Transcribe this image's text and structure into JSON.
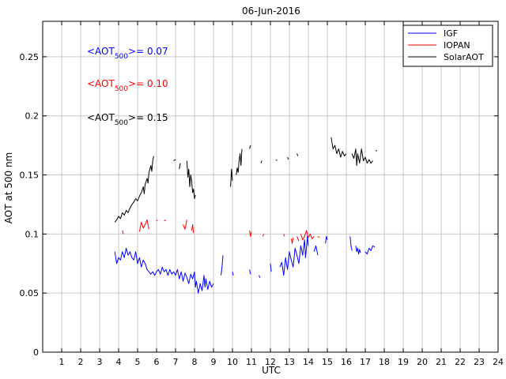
{
  "chart_data": {
    "type": "line",
    "title": "06-Jun-2016",
    "xlabel": "UTC",
    "ylabel": "AOT at 500 nm",
    "xlim": [
      0,
      24
    ],
    "ylim": [
      0,
      0.28
    ],
    "grid": true,
    "xticks": [
      "1",
      "2",
      "3",
      "4",
      "5",
      "6",
      "7",
      "8",
      "9",
      "10",
      "11",
      "12",
      "13",
      "14",
      "15",
      "16",
      "17",
      "18",
      "19",
      "20",
      "21",
      "22",
      "23",
      "24"
    ],
    "yticks": [
      "0",
      "0.05",
      "0.1",
      "0.15",
      "0.2",
      "0.25"
    ],
    "legend": {
      "position": "top-right",
      "entries": [
        {
          "name": "IGF",
          "color": "#0000ff"
        },
        {
          "name": "IOPAN",
          "color": "#ff0000"
        },
        {
          "name": "SolarAOT",
          "color": "#000000"
        }
      ]
    },
    "annotations": [
      {
        "pre": "<AOT",
        "sub": "500",
        "post": ">= 0.07",
        "color": "#0000ff"
      },
      {
        "pre": "<AOT",
        "sub": "500",
        "post": ">= 0.10",
        "color": "#ff0000"
      },
      {
        "pre": "<AOT",
        "sub": "500",
        "post": ">= 0.15",
        "color": "#000000"
      }
    ],
    "series": [
      {
        "name": "IGF",
        "color": "#0000ff",
        "segments": [
          [
            [
              3.8,
              0.085
            ],
            [
              3.9,
              0.075
            ],
            [
              4.0,
              0.08
            ],
            [
              4.1,
              0.078
            ],
            [
              4.2,
              0.085
            ],
            [
              4.3,
              0.08
            ],
            [
              4.4,
              0.088
            ],
            [
              4.5,
              0.082
            ],
            [
              4.6,
              0.085
            ],
            [
              4.7,
              0.08
            ],
            [
              4.8,
              0.078
            ],
            [
              4.9,
              0.085
            ],
            [
              5.0,
              0.075
            ],
            [
              5.1,
              0.08
            ],
            [
              5.2,
              0.072
            ],
            [
              5.3,
              0.078
            ],
            [
              5.4,
              0.075
            ],
            [
              5.5,
              0.07
            ],
            [
              5.6,
              0.068
            ],
            [
              5.7,
              0.066
            ],
            [
              5.8,
              0.068
            ],
            [
              5.9,
              0.065
            ],
            [
              6.0,
              0.068
            ],
            [
              6.1,
              0.07
            ],
            [
              6.2,
              0.066
            ],
            [
              6.3,
              0.072
            ],
            [
              6.4,
              0.068
            ],
            [
              6.5,
              0.07
            ],
            [
              6.6,
              0.065
            ],
            [
              6.7,
              0.07
            ],
            [
              6.8,
              0.066
            ],
            [
              6.9,
              0.068
            ],
            [
              7.0,
              0.065
            ],
            [
              7.1,
              0.07
            ],
            [
              7.2,
              0.062
            ],
            [
              7.3,
              0.068
            ],
            [
              7.4,
              0.06
            ],
            [
              7.5,
              0.067
            ],
            [
              7.6,
              0.063
            ],
            [
              7.7,
              0.058
            ],
            [
              7.8,
              0.066
            ],
            [
              7.9,
              0.062
            ],
            [
              8.0,
              0.068
            ],
            [
              8.05,
              0.055
            ],
            [
              8.1,
              0.06
            ],
            [
              8.2,
              0.05
            ],
            [
              8.3,
              0.058
            ],
            [
              8.4,
              0.052
            ],
            [
              8.5,
              0.065
            ],
            [
              8.55,
              0.055
            ],
            [
              8.6,
              0.062
            ],
            [
              8.7,
              0.053
            ],
            [
              8.8,
              0.06
            ],
            [
              8.9,
              0.055
            ],
            [
              9.0,
              0.058
            ]
          ],
          [
            [
              9.4,
              0.065
            ],
            [
              9.45,
              0.072
            ],
            [
              9.5,
              0.082
            ]
          ],
          [
            [
              10.0,
              0.068
            ],
            [
              10.05,
              0.065
            ]
          ],
          [
            [
              10.9,
              0.07
            ],
            [
              10.95,
              0.066
            ]
          ],
          [
            [
              11.4,
              0.065
            ],
            [
              11.45,
              0.063
            ]
          ],
          [
            [
              12.0,
              0.075
            ],
            [
              12.05,
              0.068
            ]
          ],
          [
            [
              12.5,
              0.072
            ],
            [
              12.6,
              0.076
            ],
            [
              12.7,
              0.065
            ],
            [
              12.8,
              0.08
            ],
            [
              12.9,
              0.07
            ],
            [
              13.0,
              0.085
            ],
            [
              13.1,
              0.078
            ],
            [
              13.2,
              0.072
            ],
            [
              13.3,
              0.088
            ],
            [
              13.4,
              0.082
            ],
            [
              13.5,
              0.075
            ],
            [
              13.6,
              0.09
            ],
            [
              13.7,
              0.082
            ],
            [
              13.8,
              0.095
            ],
            [
              13.85,
              0.08
            ],
            [
              13.9,
              0.088
            ],
            [
              13.95,
              0.098
            ],
            [
              14.0,
              0.09
            ]
          ],
          [
            [
              14.3,
              0.085
            ],
            [
              14.4,
              0.09
            ],
            [
              14.5,
              0.082
            ]
          ],
          [
            [
              14.9,
              0.092
            ],
            [
              14.95,
              0.098
            ],
            [
              15.0,
              0.095
            ]
          ],
          [
            [
              16.2,
              0.098
            ],
            [
              16.25,
              0.09
            ],
            [
              16.3,
              0.086
            ]
          ],
          [
            [
              16.5,
              0.09
            ],
            [
              16.55,
              0.085
            ],
            [
              16.6,
              0.088
            ],
            [
              16.65,
              0.083
            ],
            [
              16.7,
              0.087
            ],
            [
              16.75,
              0.084
            ]
          ],
          [
            [
              17.0,
              0.085
            ],
            [
              17.1,
              0.083
            ],
            [
              17.2,
              0.088
            ],
            [
              17.3,
              0.086
            ],
            [
              17.4,
              0.09
            ],
            [
              17.5,
              0.089
            ]
          ]
        ]
      },
      {
        "name": "IOPAN",
        "color": "#ff0000",
        "segments": [
          [
            [
              4.2,
              0.103
            ],
            [
              4.25,
              0.1
            ]
          ],
          [
            [
              5.1,
              0.102
            ],
            [
              5.2,
              0.11
            ],
            [
              5.3,
              0.105
            ],
            [
              5.4,
              0.108
            ],
            [
              5.5,
              0.112
            ],
            [
              5.6,
              0.104
            ]
          ],
          [
            [
              6.0,
              0.112
            ],
            [
              6.05,
              0.111
            ]
          ],
          [
            [
              6.4,
              0.111
            ],
            [
              6.5,
              0.112
            ]
          ],
          [
            [
              7.4,
              0.108
            ],
            [
              7.5,
              0.104
            ],
            [
              7.6,
              0.112
            ]
          ],
          [
            [
              7.85,
              0.103
            ],
            [
              7.9,
              0.108
            ],
            [
              7.95,
              0.101
            ]
          ],
          [
            [
              10.9,
              0.103
            ],
            [
              10.95,
              0.098
            ],
            [
              11.0,
              0.102
            ]
          ],
          [
            [
              11.6,
              0.098
            ],
            [
              11.65,
              0.1
            ]
          ],
          [
            [
              12.7,
              0.1
            ],
            [
              12.75,
              0.098
            ]
          ],
          [
            [
              13.1,
              0.096
            ],
            [
              13.15,
              0.092
            ],
            [
              13.2,
              0.097
            ]
          ],
          [
            [
              13.4,
              0.098
            ],
            [
              13.5,
              0.094
            ]
          ],
          [
            [
              13.6,
              0.1
            ],
            [
              13.7,
              0.095
            ],
            [
              13.8,
              0.098
            ],
            [
              13.9,
              0.103
            ],
            [
              14.0,
              0.097
            ],
            [
              14.1,
              0.1
            ],
            [
              14.2,
              0.096
            ],
            [
              14.3,
              0.098
            ]
          ],
          [
            [
              14.5,
              0.098
            ],
            [
              14.6,
              0.097
            ]
          ]
        ]
      },
      {
        "name": "SolarAOT",
        "color": "#000000",
        "segments": [
          [
            [
              3.8,
              0.11
            ],
            [
              3.9,
              0.112
            ],
            [
              4.0,
              0.115
            ],
            [
              4.1,
              0.113
            ],
            [
              4.2,
              0.118
            ],
            [
              4.3,
              0.116
            ],
            [
              4.4,
              0.12
            ],
            [
              4.5,
              0.118
            ],
            [
              4.6,
              0.122
            ],
            [
              4.7,
              0.125
            ],
            [
              4.8,
              0.127
            ],
            [
              4.9,
              0.13
            ],
            [
              5.0,
              0.128
            ],
            [
              5.1,
              0.132
            ],
            [
              5.2,
              0.135
            ],
            [
              5.3,
              0.14
            ],
            [
              5.35,
              0.134
            ],
            [
              5.4,
              0.142
            ],
            [
              5.5,
              0.147
            ],
            [
              5.55,
              0.143
            ],
            [
              5.6,
              0.152
            ],
            [
              5.7,
              0.158
            ],
            [
              5.75,
              0.153
            ],
            [
              5.8,
              0.162
            ],
            [
              5.85,
              0.166
            ]
          ],
          [
            [
              6.9,
              0.162
            ],
            [
              7.0,
              0.163
            ]
          ],
          [
            [
              7.2,
              0.155
            ],
            [
              7.25,
              0.16
            ]
          ],
          [
            [
              7.6,
              0.162
            ],
            [
              7.65,
              0.148
            ],
            [
              7.7,
              0.155
            ],
            [
              7.75,
              0.14
            ],
            [
              7.8,
              0.15
            ],
            [
              7.85,
              0.145
            ],
            [
              7.9,
              0.135
            ],
            [
              7.95,
              0.138
            ],
            [
              8.0,
              0.13
            ],
            [
              8.05,
              0.133
            ]
          ],
          [
            [
              9.9,
              0.14
            ],
            [
              9.95,
              0.155
            ],
            [
              10.0,
              0.145
            ]
          ],
          [
            [
              10.2,
              0.15
            ],
            [
              10.25,
              0.156
            ],
            [
              10.3,
              0.152
            ],
            [
              10.35,
              0.162
            ],
            [
              10.4,
              0.168
            ],
            [
              10.45,
              0.158
            ],
            [
              10.5,
              0.172
            ]
          ],
          [
            [
              10.9,
              0.172
            ],
            [
              10.95,
              0.175
            ]
          ],
          [
            [
              11.5,
              0.16
            ],
            [
              11.55,
              0.162
            ]
          ],
          [
            [
              12.3,
              0.163
            ],
            [
              12.35,
              0.162
            ]
          ],
          [
            [
              12.9,
              0.165
            ],
            [
              12.95,
              0.163
            ]
          ],
          [
            [
              13.4,
              0.168
            ],
            [
              13.45,
              0.166
            ]
          ],
          [
            [
              15.2,
              0.182
            ],
            [
              15.3,
              0.172
            ],
            [
              15.4,
              0.175
            ],
            [
              15.5,
              0.168
            ],
            [
              15.6,
              0.172
            ],
            [
              15.7,
              0.165
            ],
            [
              15.8,
              0.17
            ],
            [
              15.9,
              0.166
            ],
            [
              16.0,
              0.168
            ]
          ],
          [
            [
              16.3,
              0.168
            ],
            [
              16.4,
              0.164
            ],
            [
              16.5,
              0.172
            ],
            [
              16.55,
              0.158
            ],
            [
              16.6,
              0.168
            ],
            [
              16.7,
              0.16
            ],
            [
              16.8,
              0.172
            ],
            [
              16.9,
              0.162
            ],
            [
              17.0,
              0.165
            ],
            [
              17.1,
              0.16
            ],
            [
              17.2,
              0.163
            ],
            [
              17.3,
              0.16
            ],
            [
              17.4,
              0.162
            ]
          ],
          [
            [
              17.55,
              0.171
            ],
            [
              17.6,
              0.17
            ]
          ]
        ]
      }
    ]
  }
}
